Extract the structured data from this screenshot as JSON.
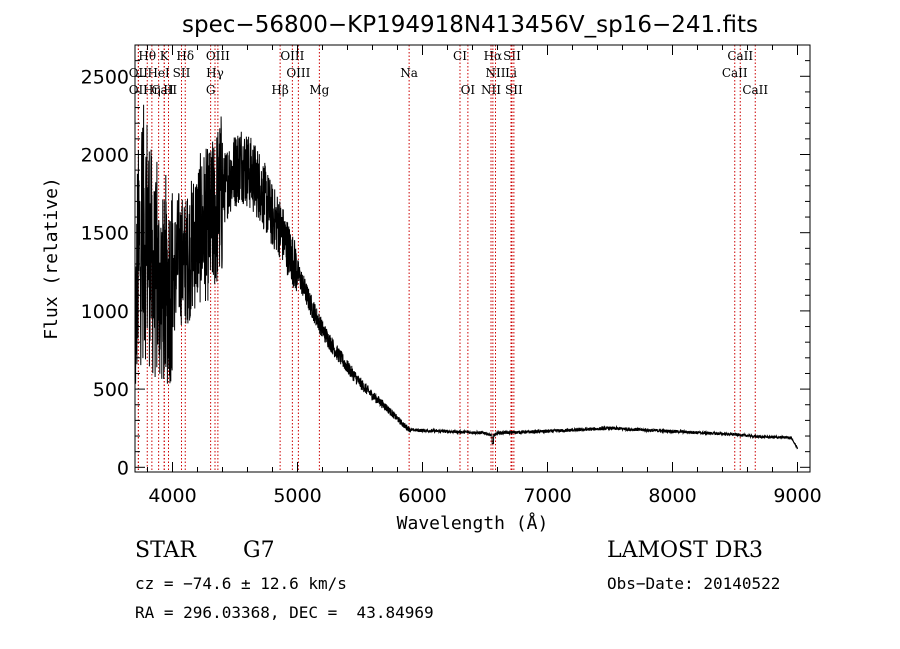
{
  "chart_data": {
    "type": "line",
    "title": "spec−56800−KP194918N413456V_sp16−241.fits",
    "xlabel": "Wavelength (Å)",
    "ylabel": "Flux (relative)",
    "xlim": [
      3700,
      9100
    ],
    "ylim": [
      -30,
      2700
    ],
    "xticks": [
      4000,
      5000,
      6000,
      7000,
      8000,
      9000
    ],
    "yticks": [
      0,
      500,
      1000,
      1500,
      2000,
      2500
    ],
    "spectrum_anchors": {
      "x": [
        3700,
        3720,
        3760,
        3800,
        3850,
        3900,
        3950,
        4000,
        4050,
        4100,
        4150,
        4200,
        4250,
        4300,
        4350,
        4400,
        4450,
        4500,
        4550,
        4600,
        4650,
        4700,
        4750,
        4800,
        4850,
        4900,
        4950,
        5000,
        5100,
        5200,
        5300,
        5400,
        5500,
        5600,
        5700,
        5800,
        5850,
        5900,
        6000,
        6500,
        6560,
        6600,
        7000,
        7500,
        8000,
        8500,
        8700,
        8950,
        9000
      ],
      "y": [
        700,
        1300,
        1500,
        1500,
        1200,
        1150,
        1100,
        1200,
        1350,
        1300,
        1400,
        1500,
        1550,
        1550,
        1650,
        1750,
        1850,
        1900,
        1950,
        1900,
        1850,
        1800,
        1700,
        1600,
        1550,
        1450,
        1350,
        1250,
        1050,
        880,
        750,
        640,
        540,
        460,
        390,
        310,
        270,
        240,
        235,
        220,
        200,
        220,
        230,
        250,
        230,
        210,
        195,
        190,
        120
      ]
    },
    "lines": [
      {
        "label": "CaII",
        "x": 3934,
        "row": 3
      },
      {
        "label": "Hθ",
        "x": 3798,
        "row": 1
      },
      {
        "label": "K",
        "x": 3934,
        "row": 1
      },
      {
        "label": "Hδ",
        "x": 4102,
        "row": 1
      },
      {
        "label": "OIII",
        "x": 4363,
        "row": 1
      },
      {
        "label": "OIII",
        "x": 4959,
        "row": 1
      },
      {
        "label": "CI",
        "x": 6300,
        "row": 1
      },
      {
        "label": "Hα",
        "x": 6563,
        "row": 1
      },
      {
        "label": "SII",
        "x": 6716,
        "row": 1
      },
      {
        "label": "CaII",
        "x": 8542,
        "row": 1
      },
      {
        "label": "OII",
        "x": 3727,
        "row": 2
      },
      {
        "label": "HeI",
        "x": 3889,
        "row": 2
      },
      {
        "label": "SII",
        "x": 4072,
        "row": 2
      },
      {
        "label": "Hγ",
        "x": 4340,
        "row": 2
      },
      {
        "label": "OIII",
        "x": 5007,
        "row": 2
      },
      {
        "label": "Na",
        "x": 5893,
        "row": 2
      },
      {
        "label": "NII",
        "x": 6584,
        "row": 2
      },
      {
        "label": "Li",
        "x": 6708,
        "row": 2
      },
      {
        "label": "CaII",
        "x": 8498,
        "row": 2
      },
      {
        "label": "OII",
        "x": 3727,
        "row": 3
      },
      {
        "label": "Hη",
        "x": 3835,
        "row": 3
      },
      {
        "label": "H",
        "x": 3968,
        "row": 3
      },
      {
        "label": "G",
        "x": 4305,
        "row": 3
      },
      {
        "label": "Hβ",
        "x": 4861,
        "row": 3
      },
      {
        "label": "Mg",
        "x": 5175,
        "row": 3
      },
      {
        "label": "OI",
        "x": 6363,
        "row": 3
      },
      {
        "label": "NII",
        "x": 6548,
        "row": 3
      },
      {
        "label": "SII",
        "x": 6731,
        "row": 3
      },
      {
        "label": "CaII",
        "x": 8662,
        "row": 3
      }
    ],
    "colors": {
      "spectrum": "#000000",
      "lines": "#cc0000",
      "axes": "#000000"
    }
  },
  "info": {
    "class_label": "STAR",
    "subclass_label": "G7",
    "survey": "LAMOST DR3",
    "cz_text": "cz = −74.6 ± 12.6 km/s",
    "obs_date_text": "Obs−Date: 20140522",
    "radec_text": "RA = 296.03368, DEC =  43.84969"
  }
}
